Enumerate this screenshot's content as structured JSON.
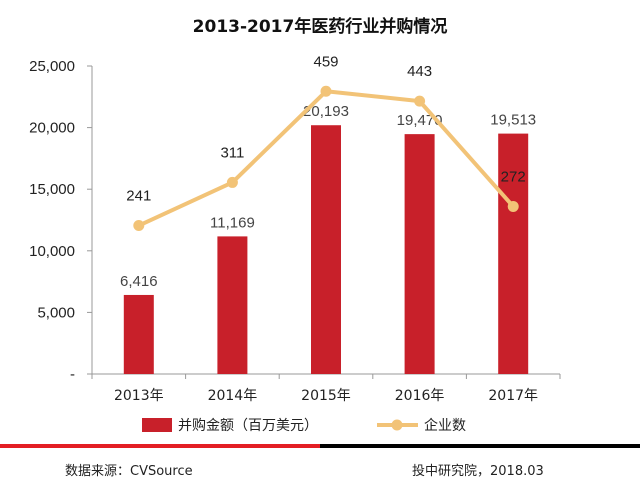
{
  "title": "2013-2017年医药行业并购情况",
  "footer": {
    "source": "数据来源：CVSource",
    "credit": "投中研究院，2018.03"
  },
  "colors": {
    "bar": "#c8202a",
    "line": "#f2c377",
    "divider_left": "#e31e24",
    "divider_right": "#000000"
  },
  "chart_data": {
    "type": "bar",
    "categories": [
      "2013年",
      "2014年",
      "2015年",
      "2016年",
      "2017年"
    ],
    "ylim": [
      0,
      25000
    ],
    "yticks": [
      "-",
      "5,000",
      "10,000",
      "15,000",
      "20,000",
      "25,000"
    ],
    "series": [
      {
        "name": "并购金额（百万美元）",
        "type": "bar",
        "values": [
          6416,
          11169,
          20193,
          19470,
          19513
        ],
        "labels": [
          "6,416",
          "11,169",
          "20,193",
          "19,470",
          "19,513"
        ]
      },
      {
        "name": "企业数",
        "type": "line",
        "values": [
          241,
          311,
          459,
          443,
          272
        ],
        "labels": [
          "241",
          "311",
          "459",
          "443",
          "272"
        ]
      }
    ],
    "secondary_ylim": [
      0,
      500
    ],
    "legend_position": "bottom",
    "grid": false
  }
}
